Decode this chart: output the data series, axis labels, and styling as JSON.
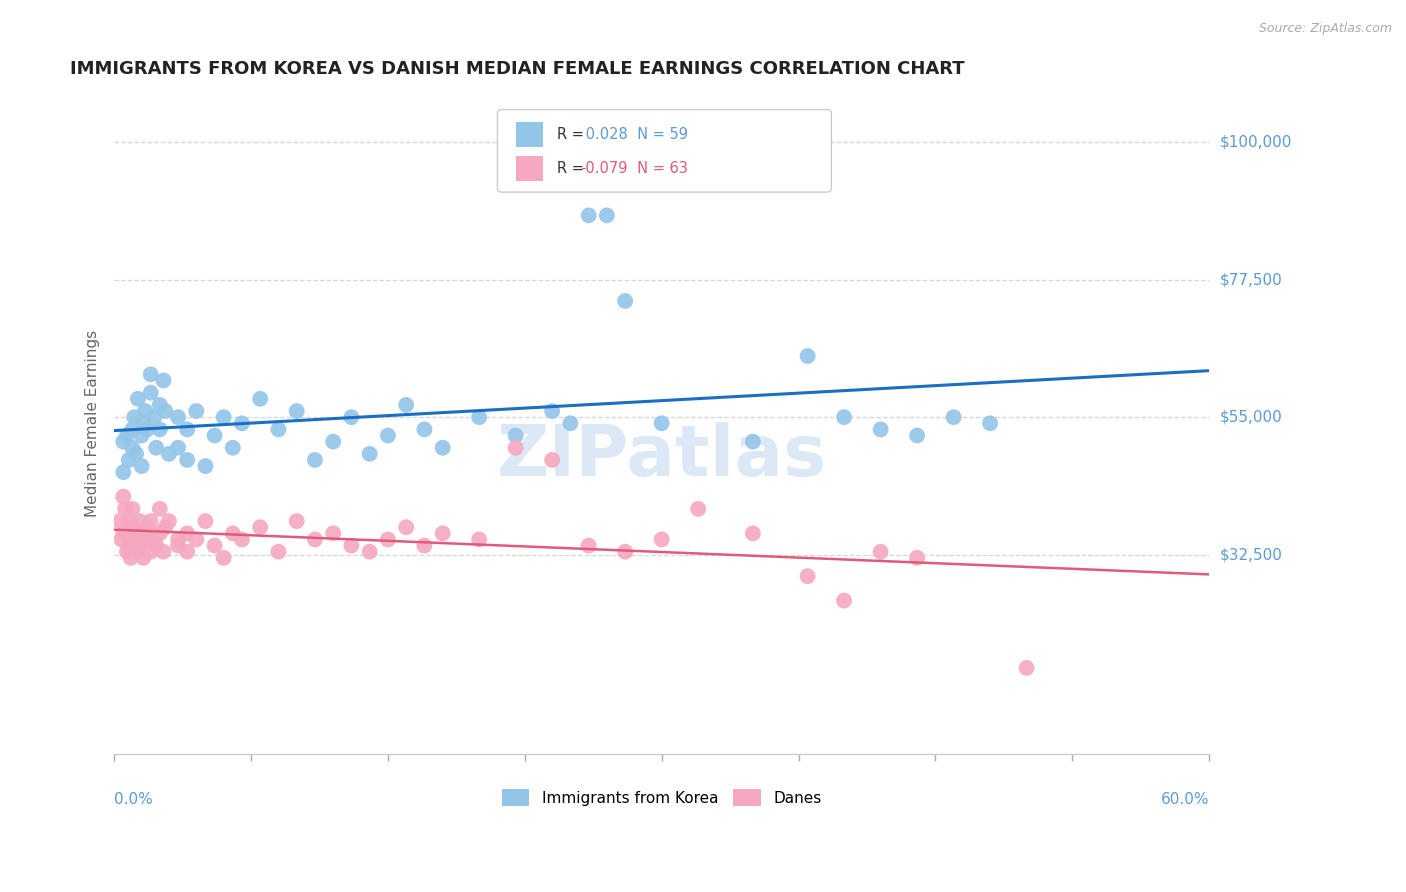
{
  "title": "IMMIGRANTS FROM KOREA VS DANISH MEDIAN FEMALE EARNINGS CORRELATION CHART",
  "source": "Source: ZipAtlas.com",
  "ylabel": "Median Female Earnings",
  "r1": 0.028,
  "n1": 59,
  "r2": -0.079,
  "n2": 63,
  "blue_color": "#92c5e8",
  "pink_color": "#f5a8c0",
  "blue_line_color": "#1a6fc4",
  "pink_line_color": "#e05a7a",
  "axis_label_color": "#5b9bd5",
  "grid_color": "#cccccc",
  "watermark_color": "#dce8f5",
  "legend1_label": "Immigrants from Korea",
  "legend2_label": "Danes",
  "xmin": 0.0,
  "xmax": 60.0,
  "ymin": 0,
  "ymax": 108000,
  "ytick_positions": [
    32500,
    55000,
    77500,
    100000
  ],
  "ytick_labels": [
    "$32,500",
    "$55,000",
    "$77,500",
    "$100,000"
  ],
  "blue_scatter_x": [
    0.5,
    0.5,
    0.7,
    0.8,
    1.0,
    1.0,
    1.1,
    1.2,
    1.3,
    1.5,
    1.5,
    1.6,
    1.7,
    1.8,
    2.0,
    2.0,
    2.2,
    2.3,
    2.5,
    2.5,
    2.7,
    2.8,
    3.0,
    3.5,
    3.5,
    4.0,
    4.0,
    4.5,
    5.0,
    5.5,
    6.0,
    6.5,
    7.0,
    8.0,
    9.0,
    10.0,
    11.0,
    12.0,
    13.0,
    14.0,
    15.0,
    16.0,
    17.0,
    18.0,
    20.0,
    22.0,
    24.0,
    25.0,
    26.0,
    27.0,
    28.0,
    30.0,
    35.0,
    38.0,
    40.0,
    42.0,
    44.0,
    46.0,
    48.0
  ],
  "blue_scatter_y": [
    51000,
    46000,
    52000,
    48000,
    53000,
    50000,
    55000,
    49000,
    58000,
    47000,
    52000,
    54000,
    56000,
    53000,
    59000,
    62000,
    55000,
    50000,
    57000,
    53000,
    61000,
    56000,
    49000,
    50000,
    55000,
    48000,
    53000,
    56000,
    47000,
    52000,
    55000,
    50000,
    54000,
    58000,
    53000,
    56000,
    48000,
    51000,
    55000,
    49000,
    52000,
    57000,
    53000,
    50000,
    55000,
    52000,
    56000,
    54000,
    88000,
    88000,
    74000,
    54000,
    51000,
    65000,
    55000,
    53000,
    52000,
    55000,
    54000
  ],
  "pink_scatter_x": [
    0.3,
    0.4,
    0.5,
    0.5,
    0.6,
    0.7,
    0.8,
    0.8,
    0.9,
    1.0,
    1.0,
    1.1,
    1.2,
    1.3,
    1.4,
    1.5,
    1.5,
    1.6,
    1.7,
    1.8,
    2.0,
    2.0,
    2.2,
    2.3,
    2.5,
    2.5,
    2.7,
    2.8,
    3.0,
    3.5,
    3.5,
    4.0,
    4.0,
    4.5,
    5.0,
    5.5,
    6.0,
    6.5,
    7.0,
    8.0,
    9.0,
    10.0,
    11.0,
    12.0,
    13.0,
    14.0,
    15.0,
    16.0,
    17.0,
    18.0,
    20.0,
    22.0,
    24.0,
    26.0,
    28.0,
    30.0,
    32.0,
    35.0,
    38.0,
    40.0,
    42.0,
    44.0,
    50.0
  ],
  "pink_scatter_y": [
    38000,
    35000,
    42000,
    36000,
    40000,
    33000,
    38000,
    34000,
    32000,
    37000,
    40000,
    35000,
    36000,
    33000,
    38000,
    34000,
    36000,
    32000,
    35000,
    37000,
    38000,
    33000,
    35000,
    34000,
    40000,
    36000,
    33000,
    37000,
    38000,
    35000,
    34000,
    36000,
    33000,
    35000,
    38000,
    34000,
    32000,
    36000,
    35000,
    37000,
    33000,
    38000,
    35000,
    36000,
    34000,
    33000,
    35000,
    37000,
    34000,
    36000,
    35000,
    50000,
    48000,
    34000,
    33000,
    35000,
    40000,
    36000,
    29000,
    25000,
    33000,
    32000,
    14000
  ]
}
